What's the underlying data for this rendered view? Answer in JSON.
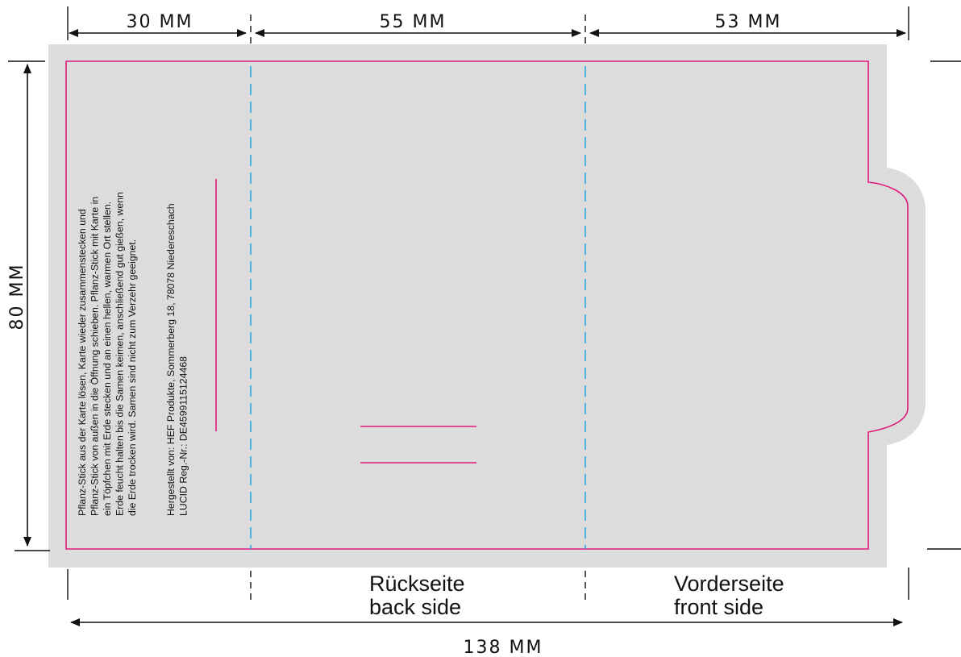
{
  "dimensions": {
    "left_panel": "30 MM",
    "middle_panel": "55 MM",
    "right_panel": "53 MM",
    "height": "80 MM",
    "total_width": "138 MM"
  },
  "labels": {
    "back_de": "Rückseite",
    "back_en": "back side",
    "front_de": "Vorderseite",
    "front_en": "front side"
  },
  "card_text": {
    "instructions": [
      "Pflanz-Stick aus der Karte lösen, Karte wieder zusammenstecken und",
      "Pflanz-Stick von außen in die Öffnung schieben. Pflanz-Stick mit Karte in",
      "ein Töpfchen mit Erde stecken und an einen hellen, warmen Ort stellen.",
      "Erde feucht halten bis die Samen keimen, anschließend gut gießen, wenn",
      "die Erde trocken wird. Samen sind nicht zum Verzehr geeignet."
    ],
    "producer": [
      "Hergestellt von: HEF Produkte, Sommerberg 18, 78078 Niedereschach",
      "LUCID Reg.-Nr.: DE4599115124468"
    ]
  },
  "colors": {
    "background_card": "#dcdcdc",
    "cut_line": "#e0197e",
    "fold_line": "#2ba8e0",
    "dimension_line": "#111111"
  }
}
